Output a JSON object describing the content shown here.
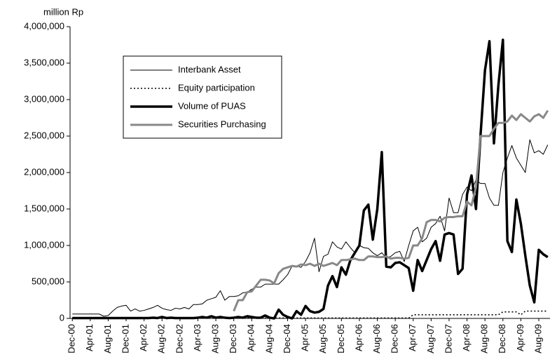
{
  "chart_data": {
    "type": "line",
    "y_axis_label": "million Rp",
    "categories": [
      "Dec-00",
      null,
      null,
      null,
      "Apr-01",
      null,
      null,
      null,
      "Aug-01",
      null,
      null,
      null,
      "Dec-01",
      null,
      null,
      null,
      "Apr-02",
      null,
      null,
      null,
      "Aug-02",
      null,
      null,
      null,
      "Dec-02",
      null,
      null,
      null,
      "Apr-03",
      null,
      null,
      null,
      "Aug-03",
      null,
      null,
      null,
      "Dec-03",
      null,
      null,
      null,
      "Apr-04",
      null,
      null,
      null,
      "Aug-04",
      null,
      null,
      null,
      "Dec-04",
      null,
      null,
      null,
      "Apr-05",
      null,
      null,
      null,
      "Aug-05",
      null,
      null,
      null,
      "Dec-05",
      null,
      null,
      null,
      "Apr-06",
      null,
      null,
      null,
      "Aug-06",
      null,
      null,
      null,
      "Dec-06",
      null,
      null,
      null,
      "Apr-07",
      null,
      null,
      null,
      "Aug-07",
      null,
      null,
      null,
      "Dec-07",
      null,
      null,
      null,
      "Apr-08",
      null,
      null,
      null,
      "Aug-08",
      null,
      null,
      null,
      "Dec-08",
      null,
      null,
      null,
      "Apr-09",
      null,
      null,
      null,
      "Aug-09",
      null,
      null
    ],
    "series": [
      {
        "name": "Interbank Asset",
        "color": "#000000",
        "values": [
          60000,
          60000,
          60000,
          60000,
          60000,
          60000,
          60000,
          30000,
          40000,
          100000,
          150000,
          170000,
          180000,
          100000,
          130000,
          100000,
          110000,
          130000,
          150000,
          180000,
          140000,
          120000,
          110000,
          140000,
          130000,
          150000,
          130000,
          190000,
          190000,
          200000,
          250000,
          270000,
          290000,
          380000,
          250000,
          300000,
          300000,
          310000,
          350000,
          360000,
          400000,
          430000,
          430000,
          470000,
          470000,
          470000,
          470000,
          530000,
          600000,
          720000,
          720000,
          700000,
          780000,
          900000,
          1100000,
          640000,
          850000,
          880000,
          1050000,
          980000,
          950000,
          1050000,
          970000,
          900000,
          1000000,
          970000,
          960000,
          900000,
          860000,
          900000,
          830000,
          850000,
          900000,
          920000,
          780000,
          1000000,
          1200000,
          1250000,
          1050000,
          1100000,
          1250000,
          1300000,
          1400000,
          1200000,
          1650000,
          1450000,
          1450000,
          1700000,
          1800000,
          1750000,
          1900000,
          1850000,
          1850000,
          1650000,
          1550000,
          1550000,
          2000000,
          2200000,
          2370000,
          2200000,
          2100000,
          2000000,
          2450000,
          2270000,
          2300000,
          2250000,
          2380000
        ]
      },
      {
        "name": "Equity participation",
        "color": "#000000",
        "values": [
          5000,
          5000,
          5000,
          5000,
          5000,
          5000,
          5000,
          5000,
          5000,
          5000,
          5000,
          5000,
          5000,
          5000,
          5000,
          5000,
          5000,
          5000,
          5000,
          5000,
          5000,
          5000,
          5000,
          5000,
          5000,
          5000,
          5000,
          5000,
          5000,
          5000,
          5000,
          5000,
          5000,
          5000,
          5000,
          5000,
          5000,
          5000,
          5000,
          5000,
          5000,
          5000,
          5000,
          5000,
          5000,
          5000,
          5000,
          5000,
          5000,
          5000,
          5000,
          5000,
          5000,
          5000,
          5000,
          5000,
          5000,
          5000,
          5000,
          5000,
          5000,
          5000,
          5000,
          5000,
          5000,
          5000,
          5000,
          5000,
          5000,
          5000,
          5000,
          5000,
          5000,
          5000,
          5000,
          5000,
          50000,
          50000,
          50000,
          50000,
          50000,
          50000,
          50000,
          50000,
          50000,
          50000,
          50000,
          50000,
          50000,
          50000,
          50000,
          50000,
          50000,
          50000,
          50000,
          50000,
          90000,
          90000,
          90000,
          90000,
          50000,
          100000,
          100000,
          100000,
          100000,
          100000,
          100000
        ]
      },
      {
        "name": "Volume of PUAS",
        "color": "#000000",
        "values": [
          5000,
          5000,
          5000,
          5000,
          5000,
          5000,
          5000,
          5000,
          5000,
          5000,
          5000,
          5000,
          5000,
          5000,
          5000,
          5000,
          5000,
          5000,
          10000,
          5000,
          20000,
          5000,
          10000,
          5000,
          5000,
          5000,
          5000,
          5000,
          10000,
          20000,
          10000,
          30000,
          10000,
          20000,
          10000,
          5000,
          10000,
          20000,
          10000,
          30000,
          20000,
          10000,
          10000,
          40000,
          10000,
          0,
          120000,
          50000,
          20000,
          0,
          100000,
          50000,
          170000,
          100000,
          80000,
          90000,
          130000,
          450000,
          580000,
          430000,
          700000,
          600000,
          800000,
          900000,
          1000000,
          1480000,
          1560000,
          1080000,
          1500000,
          2280000,
          710000,
          700000,
          760000,
          770000,
          730000,
          690000,
          380000,
          800000,
          650000,
          800000,
          950000,
          1060000,
          790000,
          1150000,
          1170000,
          1150000,
          610000,
          680000,
          1700000,
          1960000,
          1500000,
          2500000,
          3400000,
          3800000,
          2400000,
          3200000,
          3820000,
          1060000,
          910000,
          1630000,
          1300000,
          860000,
          450000,
          220000,
          940000,
          880000,
          840000
        ]
      },
      {
        "name": "Securities Purchasing",
        "color": "#888888",
        "values": [
          null,
          null,
          null,
          null,
          null,
          null,
          null,
          null,
          null,
          null,
          null,
          null,
          null,
          null,
          null,
          null,
          null,
          null,
          null,
          null,
          null,
          null,
          null,
          null,
          null,
          null,
          null,
          null,
          null,
          null,
          null,
          null,
          null,
          null,
          null,
          null,
          100000,
          250000,
          250000,
          360000,
          370000,
          450000,
          530000,
          530000,
          520000,
          480000,
          620000,
          680000,
          700000,
          720000,
          710000,
          740000,
          730000,
          750000,
          720000,
          750000,
          720000,
          740000,
          760000,
          730000,
          800000,
          800000,
          810000,
          820000,
          800000,
          800000,
          850000,
          850000,
          840000,
          840000,
          850000,
          820000,
          830000,
          830000,
          820000,
          830000,
          1000000,
          1000000,
          1100000,
          1320000,
          1350000,
          1350000,
          1330000,
          1380000,
          1390000,
          1390000,
          1400000,
          1400000,
          1600000,
          1550000,
          1800000,
          2500000,
          2500000,
          2500000,
          2600000,
          2680000,
          2680000,
          2700000,
          2780000,
          2720000,
          2800000,
          2750000,
          2700000,
          2770000,
          2800000,
          2750000,
          2850000
        ]
      }
    ],
    "ylim": [
      0,
      4000000
    ],
    "yticks": [
      0,
      {
        "value": 500000,
        "label": "500,000"
      },
      {
        "value": 1000000,
        "label": "1,000,000"
      },
      {
        "value": 1500000,
        "label": "1,500,000"
      },
      {
        "value": 2000000,
        "label": "2,000,000"
      },
      {
        "value": 2500000,
        "label": "2,500,000"
      },
      {
        "value": 3000000,
        "label": "3,000,000"
      },
      {
        "value": 3500000,
        "label": "3,500,000"
      },
      {
        "value": 4000000,
        "label": "4,000,000"
      }
    ],
    "grid": false
  }
}
